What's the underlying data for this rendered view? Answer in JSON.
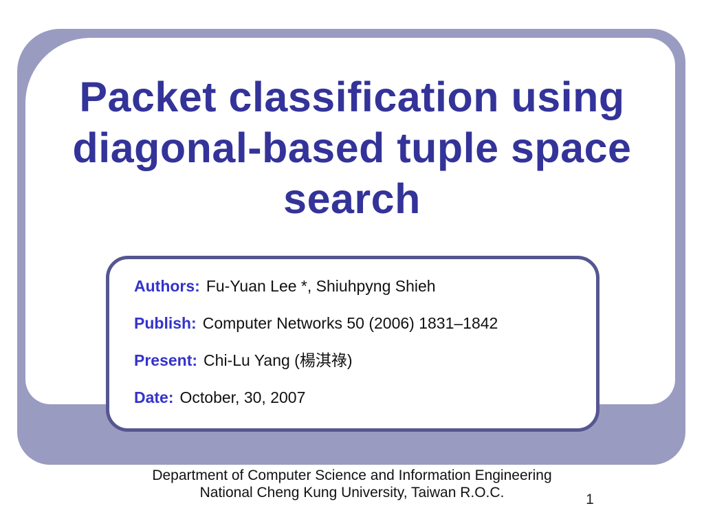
{
  "slide": {
    "title_lines": [
      "Packet classification using",
      "diagonal-based tuple space",
      "search"
    ],
    "info_box": {
      "rows": [
        {
          "label": "Authors:",
          "value": "Fu-Yuan Lee *, Shiuhpyng Shieh"
        },
        {
          "label": "Publish:",
          "value": "Computer Networks 50 (2006) 1831–1842"
        },
        {
          "label": "Present:",
          "value": "Chi-Lu Yang (楊淇祿)"
        },
        {
          "label": "Date:",
          "value": "October, 30, 2007"
        }
      ]
    },
    "footer_lines": [
      "Department of Computer Science and Information Engineering",
      "National Cheng Kung University, Taiwan R.O.C."
    ],
    "page_number": "1",
    "colors": {
      "band": "#9a9bc1",
      "title": "#333399",
      "label": "#3333cc",
      "box_border": "#565690"
    }
  }
}
